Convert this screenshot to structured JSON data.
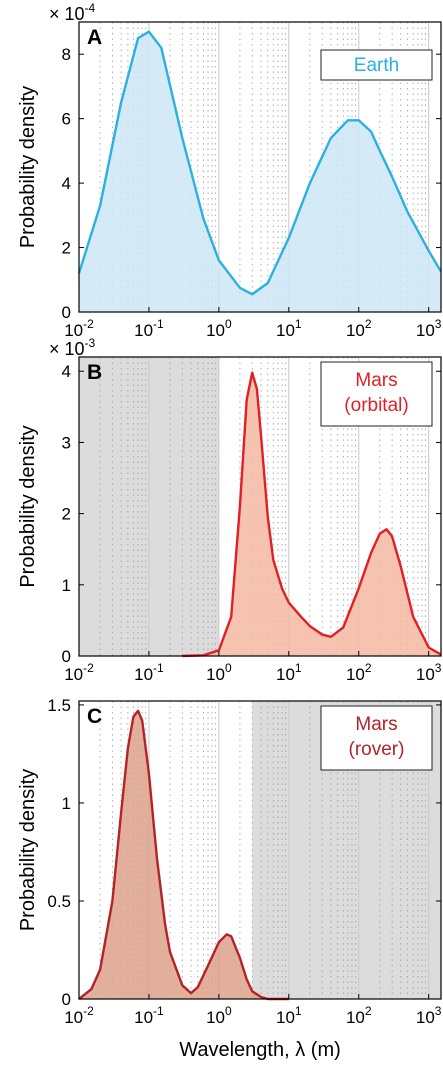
{
  "chart_data": [
    {
      "type": "area",
      "panel": "A",
      "ylabel": "Probability density",
      "y_multiplier": "× 10",
      "y_multiplier_exp": "-4",
      "xscale": "log",
      "xlim": [
        0.01,
        1500
      ],
      "ylim": [
        0,
        9
      ],
      "yticks": [
        "0",
        "2",
        "4",
        "6",
        "8"
      ],
      "xticks": [
        {
          "base": "10",
          "exp": "-2"
        },
        {
          "base": "10",
          "exp": "-1"
        },
        {
          "base": "10",
          "exp": "0"
        },
        {
          "base": "10",
          "exp": "1"
        },
        {
          "base": "10",
          "exp": "2"
        },
        {
          "base": "10",
          "exp": "3"
        }
      ],
      "shaded_region": null,
      "series": [
        {
          "name": "Earth",
          "color": "#2bb0e3",
          "fill": "#cce8f6",
          "x": [
            0.01,
            0.02,
            0.04,
            0.07,
            0.1,
            0.15,
            0.3,
            0.6,
            1,
            2,
            3,
            5,
            10,
            20,
            40,
            70,
            100,
            150,
            200,
            300,
            500,
            1000,
            1500
          ],
          "y": [
            1.2,
            3.3,
            6.5,
            8.5,
            8.7,
            8.2,
            5.4,
            2.9,
            1.6,
            0.75,
            0.55,
            0.9,
            2.3,
            4.0,
            5.4,
            5.95,
            5.95,
            5.6,
            5.0,
            4.2,
            3.1,
            1.9,
            1.25
          ]
        }
      ]
    },
    {
      "type": "area",
      "panel": "B",
      "ylabel": "Probability density",
      "y_multiplier": "× 10",
      "y_multiplier_exp": "-3",
      "xscale": "log",
      "xlim": [
        0.01,
        1500
      ],
      "ylim": [
        0,
        4.2
      ],
      "yticks": [
        "0",
        "1",
        "2",
        "3",
        "4"
      ],
      "xticks": [
        {
          "base": "10",
          "exp": "-2"
        },
        {
          "base": "10",
          "exp": "-1"
        },
        {
          "base": "10",
          "exp": "0"
        },
        {
          "base": "10",
          "exp": "1"
        },
        {
          "base": "10",
          "exp": "2"
        },
        {
          "base": "10",
          "exp": "3"
        }
      ],
      "shaded_region": [
        0.01,
        1
      ],
      "series": [
        {
          "name": "Mars\n(orbital)",
          "color": "#e02026",
          "fill": "#f5b9a3",
          "x": [
            0.3,
            0.6,
            1,
            1.5,
            2,
            2.5,
            3,
            3.5,
            4,
            5,
            6,
            8,
            10,
            15,
            20,
            30,
            40,
            60,
            100,
            150,
            200,
            250,
            300,
            400,
            600,
            1000,
            1500
          ],
          "y": [
            0,
            0.01,
            0.08,
            0.55,
            2.1,
            3.6,
            3.98,
            3.75,
            3.1,
            1.95,
            1.35,
            0.95,
            0.75,
            0.55,
            0.42,
            0.3,
            0.27,
            0.4,
            0.95,
            1.45,
            1.72,
            1.78,
            1.68,
            1.25,
            0.55,
            0.12,
            0.02
          ]
        }
      ]
    },
    {
      "type": "area",
      "panel": "C",
      "ylabel": "Probability density",
      "xlabel": "Wavelength, λ (m)",
      "y_multiplier": "",
      "xscale": "log",
      "xlim": [
        0.01,
        1500
      ],
      "ylim": [
        0,
        1.52
      ],
      "yticks": [
        "0",
        "0.5",
        "1",
        "1.5"
      ],
      "xticks": [
        {
          "base": "10",
          "exp": "-2"
        },
        {
          "base": "10",
          "exp": "-1"
        },
        {
          "base": "10",
          "exp": "0"
        },
        {
          "base": "10",
          "exp": "1"
        },
        {
          "base": "10",
          "exp": "2"
        },
        {
          "base": "10",
          "exp": "3"
        }
      ],
      "shaded_region": [
        3,
        1500
      ],
      "series": [
        {
          "name": "Mars\n(rover)",
          "color": "#b22428",
          "fill": "#dca189",
          "x": [
            0.01,
            0.015,
            0.02,
            0.03,
            0.04,
            0.05,
            0.06,
            0.07,
            0.08,
            0.1,
            0.13,
            0.17,
            0.2,
            0.3,
            0.4,
            0.5,
            0.7,
            1,
            1.3,
            1.5,
            2,
            2.5,
            3,
            4,
            5,
            7,
            10
          ],
          "y": [
            0,
            0.05,
            0.15,
            0.5,
            0.95,
            1.28,
            1.44,
            1.47,
            1.42,
            1.15,
            0.72,
            0.38,
            0.24,
            0.07,
            0.03,
            0.06,
            0.17,
            0.29,
            0.33,
            0.32,
            0.21,
            0.1,
            0.04,
            0.01,
            0,
            0,
            0
          ]
        }
      ]
    }
  ]
}
